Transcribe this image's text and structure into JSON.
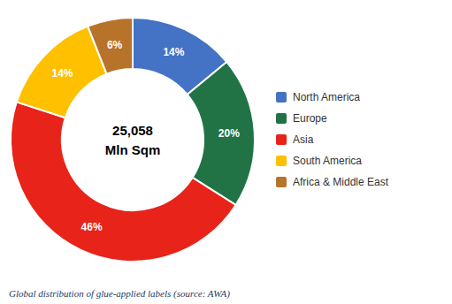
{
  "chart_data": {
    "type": "pie",
    "categories": [
      "North America",
      "Europe",
      "Asia",
      "South America",
      "Africa & Middle East"
    ],
    "values": [
      14,
      20,
      46,
      14,
      6
    ],
    "value_labels": [
      "14%",
      "20%",
      "46%",
      "14%",
      "6%"
    ],
    "colors": [
      "#4472C4",
      "#217346",
      "#E8231A",
      "#FFC000",
      "#B8732A"
    ],
    "data_labels": true,
    "legend": "right",
    "annotations": [
      "25,058",
      "Mln Sqm"
    ],
    "caption": "Global distribution of glue-applied labels (source: AWA)"
  }
}
